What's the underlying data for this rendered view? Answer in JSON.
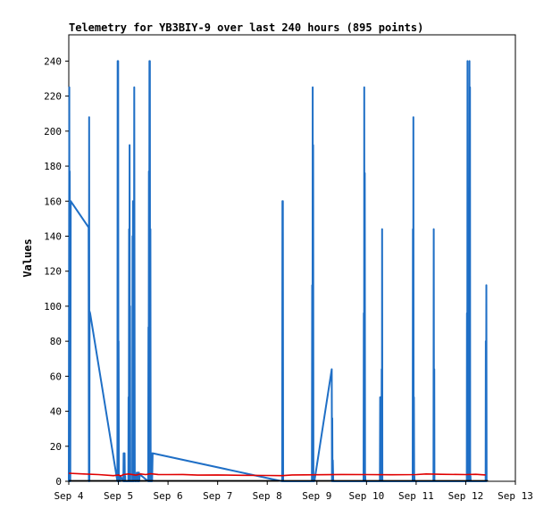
{
  "chart_data": {
    "type": "line",
    "title": "Telemetry for YB3BIY-9 over last 240 hours (895 points)",
    "xlabel": "",
    "ylabel": "Values",
    "x_unit": "days (September)",
    "xlim": [
      4,
      13
    ],
    "ylim": [
      0,
      255
    ],
    "x_ticks": [
      {
        "value": 4,
        "label": "Sep 4"
      },
      {
        "value": 5,
        "label": "Sep 5"
      },
      {
        "value": 6,
        "label": "Sep 6"
      },
      {
        "value": 7,
        "label": "Sep 7"
      },
      {
        "value": 8,
        "label": "Sep 8"
      },
      {
        "value": 9,
        "label": "Sep 9"
      },
      {
        "value": 10,
        "label": "Sep 10"
      },
      {
        "value": 11,
        "label": "Sep 11"
      },
      {
        "value": 12,
        "label": "Sep 12"
      },
      {
        "value": 13,
        "label": "Sep 13"
      }
    ],
    "y_ticks": [
      0,
      20,
      40,
      60,
      80,
      100,
      120,
      140,
      160,
      180,
      200,
      220,
      240
    ],
    "grid": false,
    "series": [
      {
        "color": "#1f6fc6",
        "x": [
          4.0,
          4.01,
          4.015,
          4.02,
          4.03,
          4.04,
          4.4,
          4.405,
          4.41,
          4.415,
          4.42,
          4.43,
          4.98,
          4.985,
          4.99,
          4.995,
          5.0,
          5.005,
          5.01,
          5.02,
          5.025,
          5.03,
          5.035,
          5.04,
          5.1,
          5.105,
          5.11,
          5.115,
          5.12,
          5.125,
          5.13,
          5.135,
          5.14,
          5.2,
          5.205,
          5.21,
          5.215,
          5.22,
          5.225,
          5.23,
          5.235,
          5.24,
          5.28,
          5.285,
          5.29,
          5.295,
          5.3,
          5.305,
          5.31,
          5.32,
          5.33,
          5.335,
          5.34,
          5.345,
          5.35,
          5.355,
          5.36,
          5.37,
          5.38,
          5.385,
          5.39,
          5.395,
          5.4,
          5.405,
          5.41,
          5.415,
          5.42,
          5.43,
          5.6,
          5.605,
          5.61,
          5.615,
          5.62,
          5.625,
          5.63,
          5.635,
          5.64,
          5.645,
          5.65,
          5.655,
          5.66,
          5.665,
          5.67,
          5.675,
          5.68,
          5.69,
          8.3,
          8.305,
          8.31,
          8.315,
          8.32,
          8.33,
          8.9,
          8.905,
          8.91,
          8.915,
          8.92,
          8.925,
          8.93,
          8.935,
          8.94,
          8.95,
          9.3,
          9.305,
          9.31,
          9.315,
          9.32,
          9.33,
          9.94,
          9.945,
          9.95,
          9.955,
          9.96,
          9.965,
          9.97,
          9.975,
          9.98,
          9.99,
          10.27,
          10.275,
          10.28,
          10.285,
          10.3,
          10.305,
          10.31,
          10.315,
          10.32,
          10.33,
          10.93,
          10.935,
          10.94,
          10.945,
          10.95,
          10.955,
          10.96,
          10.965,
          10.97,
          10.98,
          11.35,
          11.355,
          11.36,
          11.365,
          11.37,
          11.38,
          12.02,
          12.025,
          12.03,
          12.035,
          12.04,
          12.045,
          12.05,
          12.055,
          12.06,
          12.065,
          12.07,
          12.075,
          12.08,
          12.085,
          12.09,
          12.095,
          12.1,
          12.11,
          12.4,
          12.405,
          12.41,
          12.415,
          12.42,
          12.43
        ],
        "y": [
          0,
          225,
          0,
          177,
          0,
          160,
          145,
          0,
          208,
          0,
          97,
          96,
          0,
          240,
          0,
          240,
          0,
          80,
          0,
          3,
          0,
          2,
          0,
          3,
          0,
          16,
          0,
          16,
          0,
          16,
          0,
          3,
          0,
          0,
          48,
          0,
          144,
          0,
          192,
          0,
          100,
          0,
          0,
          140,
          0,
          160,
          0,
          133,
          0,
          225,
          0,
          4,
          0,
          3,
          0,
          3,
          0,
          5,
          0,
          4,
          0,
          5,
          0,
          4,
          0,
          5,
          0,
          4,
          0,
          88,
          0,
          177,
          0,
          240,
          0,
          240,
          0,
          144,
          0,
          16,
          0,
          16,
          0,
          16,
          0,
          16,
          0,
          160,
          0,
          160,
          0,
          0,
          0,
          112,
          0,
          225,
          0,
          192,
          0,
          3,
          0,
          0,
          64,
          0,
          36,
          0,
          12,
          0,
          0,
          96,
          0,
          225,
          0,
          176,
          0,
          3,
          0,
          0,
          0,
          48,
          0,
          48,
          0,
          64,
          0,
          144,
          0,
          0,
          0,
          144,
          0,
          208,
          0,
          48,
          0,
          3,
          0,
          0,
          0,
          144,
          0,
          64,
          0,
          0,
          0,
          96,
          0,
          240,
          0,
          112,
          0,
          48,
          0,
          80,
          0,
          240,
          0,
          225,
          0,
          3,
          0,
          0,
          0,
          80,
          0,
          112,
          0,
          0
        ]
      },
      {
        "color": "#e00000",
        "x": [
          4.0,
          4.3,
          4.6,
          4.9,
          5.0,
          5.05,
          5.1,
          5.2,
          5.35,
          5.45,
          5.55,
          5.65,
          5.8,
          6.0,
          6.3,
          6.6,
          7.0,
          7.5,
          8.0,
          8.3,
          8.5,
          9.0,
          9.5,
          10.0,
          10.5,
          11.0,
          11.2,
          11.5,
          12.0,
          12.2,
          12.4
        ],
        "y": [
          4.6,
          4.2,
          3.8,
          3.2,
          3.6,
          3.0,
          3.8,
          4.2,
          3.5,
          4.2,
          3.8,
          4.3,
          3.9,
          3.8,
          3.9,
          3.5,
          3.6,
          3.4,
          3.3,
          3.2,
          3.6,
          3.7,
          3.9,
          3.8,
          3.7,
          3.8,
          4.2,
          4.0,
          3.8,
          4.0,
          3.6
        ]
      },
      {
        "color": "#000000",
        "x": [
          4.0,
          12.45
        ],
        "y": [
          0.3,
          0.3
        ]
      }
    ]
  }
}
